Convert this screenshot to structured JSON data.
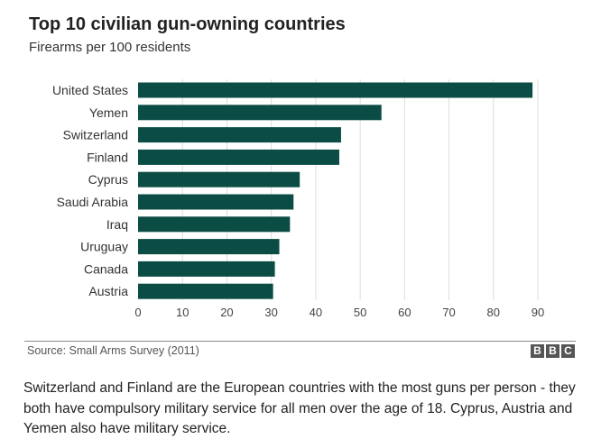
{
  "chart_data": {
    "type": "bar",
    "orientation": "horizontal",
    "title": "Top 10 civilian gun-owning countries",
    "subtitle": "Firearms per 100 residents",
    "categories": [
      "United States",
      "Yemen",
      "Switzerland",
      "Finland",
      "Cyprus",
      "Saudi Arabia",
      "Iraq",
      "Uruguay",
      "Canada",
      "Austria"
    ],
    "values": [
      88.8,
      54.8,
      45.7,
      45.3,
      36.4,
      35.0,
      34.2,
      31.8,
      30.8,
      30.4
    ],
    "xlim": [
      0,
      90
    ],
    "xticks": [
      0,
      10,
      20,
      30,
      40,
      50,
      60,
      70,
      80,
      90
    ],
    "grid": true,
    "bar_color": "#0b4d45",
    "source": "Source: Small Arms Survey (2011)"
  },
  "logo": [
    "B",
    "B",
    "C"
  ],
  "caption": "Switzerland and Finland are the European countries with the most guns per person - they both have compulsory military service for all men over the age of 18. Cyprus, Austria and Yemen also have military service."
}
